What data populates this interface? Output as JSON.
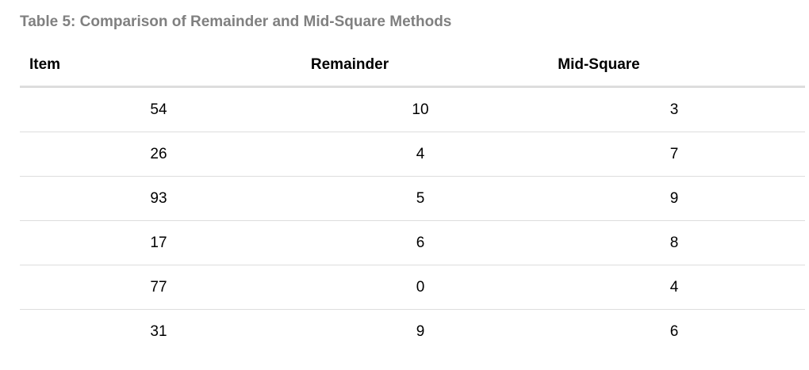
{
  "caption": "Table 5: Comparison of Remainder and Mid-Square Methods",
  "table": {
    "headers": [
      "Item",
      "Remainder",
      "Mid-Square"
    ],
    "rows": [
      [
        "54",
        "10",
        "3"
      ],
      [
        "26",
        "4",
        "7"
      ],
      [
        "93",
        "5",
        "9"
      ],
      [
        "17",
        "6",
        "8"
      ],
      [
        "77",
        "0",
        "4"
      ],
      [
        "31",
        "9",
        "6"
      ]
    ]
  },
  "colors": {
    "caption": "#808080",
    "rule": "#dddddd",
    "text": "#000000"
  }
}
